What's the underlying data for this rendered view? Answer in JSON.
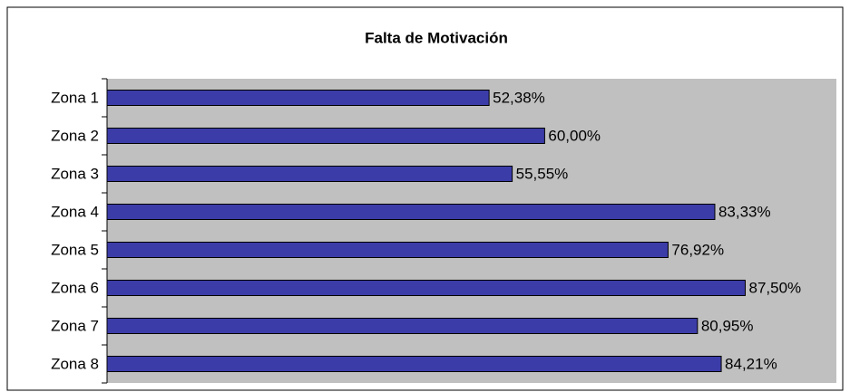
{
  "chart_data": {
    "type": "barh",
    "title": "Falta de Motivación",
    "categories": [
      "Zona 1",
      "Zona 2",
      "Zona 3",
      "Zona 4",
      "Zona 5",
      "Zona 6",
      "Zona 7",
      "Zona 8"
    ],
    "values": [
      52.38,
      60.0,
      55.55,
      83.33,
      76.92,
      87.5,
      80.95,
      84.21
    ],
    "value_labels": [
      "52,38%",
      "60,00%",
      "55,55%",
      "83,33%",
      "76,92%",
      "87,50%",
      "80,95%",
      "84,21%"
    ],
    "color": "#3c3ca8",
    "xlim": [
      0,
      100
    ]
  }
}
